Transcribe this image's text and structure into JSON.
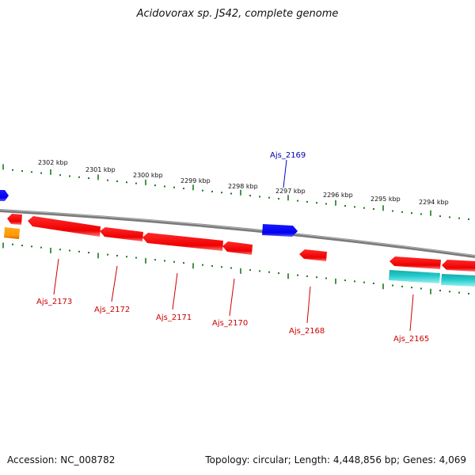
{
  "title": "Acidovorax sp. JS42, complete genome",
  "footer": {
    "accession": "Accession: NC_008782",
    "summary": "Topology: circular; Length: 4,448,856 bp; Genes: 4,069"
  },
  "colors": {
    "backbone": "#7a7a7a",
    "ticks": "#1a7a1a",
    "forward_gene": "#0000ee",
    "reverse_gene": "#ee0000",
    "rna_gene": "#ff9900",
    "other_gene": "#22cccc",
    "forward_label": "#0000aa",
    "reverse_label": "#cc0000"
  },
  "kbp_ticks": [
    "2302 kbp",
    "2301 kbp",
    "2300 kbp",
    "2299 kbp",
    "2298 kbp",
    "2297 kbp",
    "2296 kbp",
    "2295 kbp",
    "2294 kbp"
  ],
  "gene_labels": {
    "forward": [
      "Ajs_2169"
    ],
    "reverse": [
      "Ajs_2173",
      "Ajs_2172",
      "Ajs_2171",
      "Ajs_2170",
      "Ajs_2168",
      "Ajs_2165"
    ]
  }
}
